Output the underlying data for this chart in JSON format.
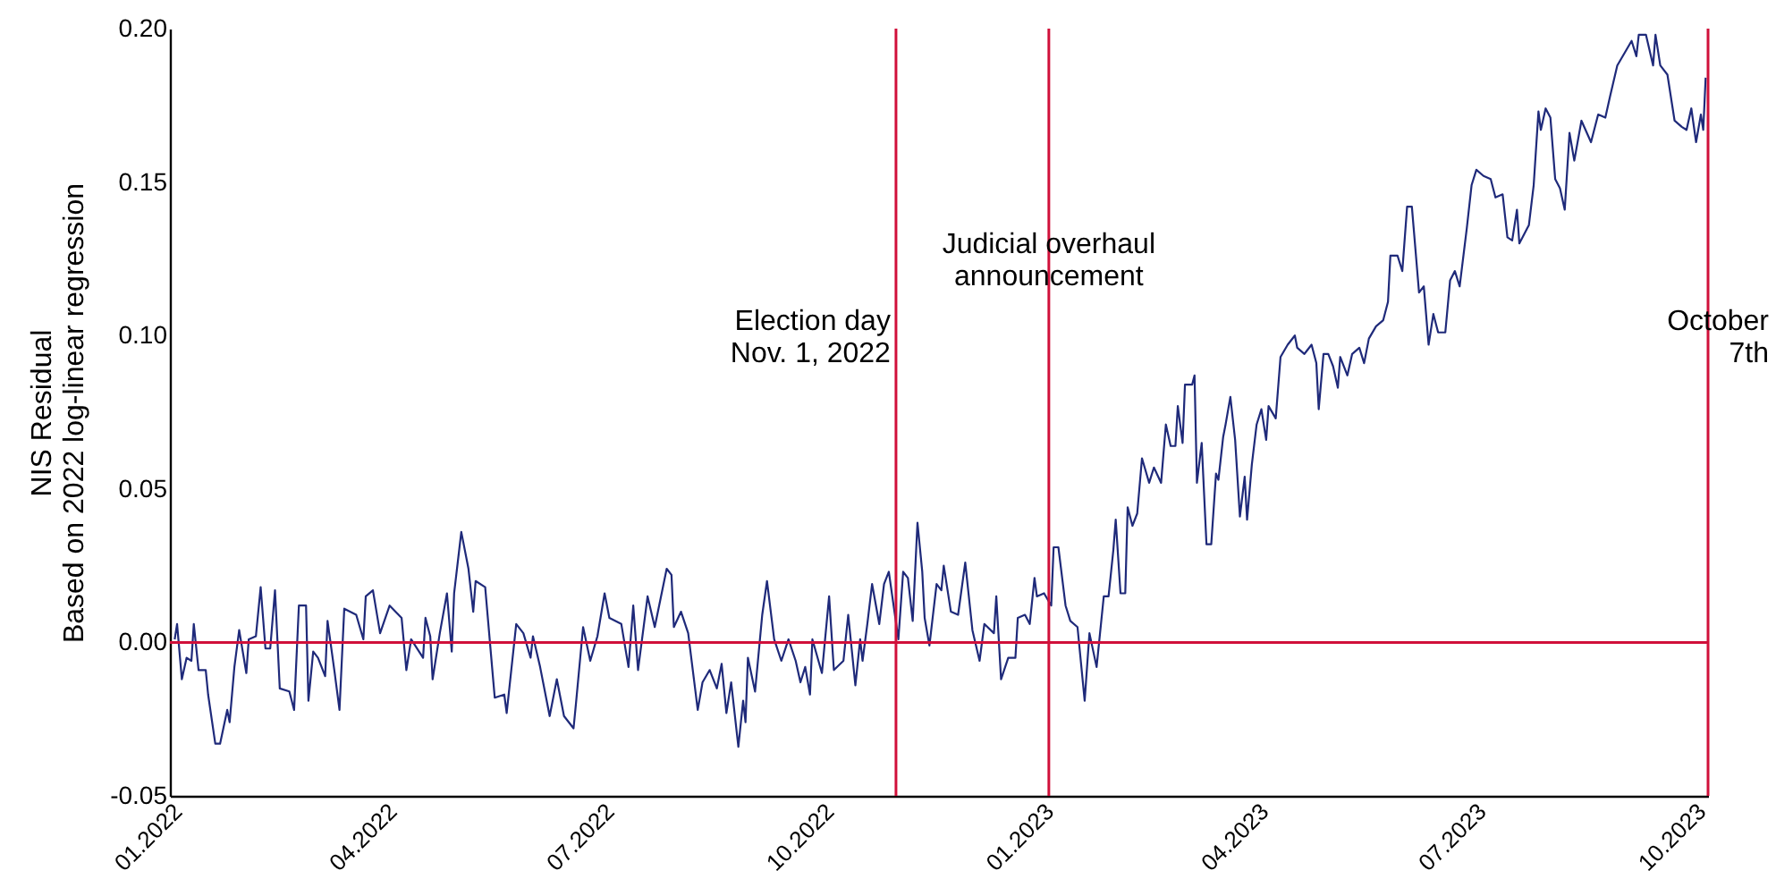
{
  "chart_data": {
    "type": "line",
    "ylabel": "NIS Residual\nBased on 2022 log-linear regression",
    "xlim": [
      "2022-01-01",
      "2023-10-07"
    ],
    "xticks": [
      {
        "value": "2022-01-01",
        "label": "01.2022"
      },
      {
        "value": "2022-04-01",
        "label": "04.2022"
      },
      {
        "value": "2022-07-01",
        "label": "07.2022"
      },
      {
        "value": "2022-10-01",
        "label": "10.2022"
      },
      {
        "value": "2023-01-01",
        "label": "01.2023"
      },
      {
        "value": "2023-04-01",
        "label": "04.2023"
      },
      {
        "value": "2023-07-01",
        "label": "07.2023"
      },
      {
        "value": "2023-10-01",
        "label": "10.2023"
      }
    ],
    "ylim": [
      -0.05,
      0.2
    ],
    "yticks": [
      {
        "value": -0.05,
        "label": "-0.05"
      },
      {
        "value": 0,
        "label": "0.00"
      },
      {
        "value": 0.05,
        "label": "0.05"
      },
      {
        "value": 0.1,
        "label": "0.10"
      },
      {
        "value": 0.15,
        "label": "0.15"
      },
      {
        "value": 0.2,
        "label": "0.20"
      }
    ],
    "grid": false,
    "marker": "none",
    "line_style": "solid",
    "ref_lines": [
      {
        "axis": "y",
        "value": 0,
        "color": "#d0103a"
      },
      {
        "axis": "x",
        "value": "2022-11-01",
        "label": "Election day\nNov. 1, 2022",
        "color": "#d0103a"
      },
      {
        "axis": "x",
        "value": "2023-01-04",
        "label": "Judicial overhaul\nannouncement",
        "color": "#d0103a"
      },
      {
        "axis": "x",
        "value": "2023-10-07",
        "label": "October\n7th",
        "color": "#d0103a"
      }
    ],
    "series": [
      {
        "color": "#1f2a7a",
        "x": [
          "2022-01-03",
          "2022-01-04",
          "2022-01-06",
          "2022-01-08",
          "2022-01-10",
          "2022-01-11",
          "2022-01-13",
          "2022-01-16",
          "2022-01-17",
          "2022-01-20",
          "2022-01-22",
          "2022-01-25",
          "2022-01-26",
          "2022-01-28",
          "2022-01-30",
          "2022-02-02",
          "2022-02-03",
          "2022-02-06",
          "2022-02-08",
          "2022-02-10",
          "2022-02-12",
          "2022-02-14",
          "2022-02-16",
          "2022-02-20",
          "2022-02-22",
          "2022-02-24",
          "2022-02-27",
          "2022-02-28",
          "2022-03-02",
          "2022-03-04",
          "2022-03-07",
          "2022-03-08",
          "2022-03-11",
          "2022-03-13",
          "2022-03-15",
          "2022-03-20",
          "2022-03-23",
          "2022-03-24",
          "2022-03-27",
          "2022-03-30",
          "2022-04-03",
          "2022-04-08",
          "2022-04-10",
          "2022-04-12",
          "2022-04-17",
          "2022-04-18",
          "2022-04-20",
          "2022-04-21",
          "2022-04-24",
          "2022-04-27",
          "2022-04-29",
          "2022-04-30",
          "2022-05-03",
          "2022-05-06",
          "2022-05-08",
          "2022-05-09",
          "2022-05-13",
          "2022-05-17",
          "2022-05-21",
          "2022-05-22",
          "2022-05-26",
          "2022-05-29",
          "2022-06-01",
          "2022-06-02",
          "2022-06-05",
          "2022-06-09",
          "2022-06-12",
          "2022-06-15",
          "2022-06-19",
          "2022-06-20",
          "2022-06-23",
          "2022-06-26",
          "2022-06-29",
          "2022-07-02",
          "2022-07-04",
          "2022-07-09",
          "2022-07-12",
          "2022-07-14",
          "2022-07-16",
          "2022-07-20",
          "2022-07-23",
          "2022-07-28",
          "2022-07-30",
          "2022-07-31",
          "2022-08-03",
          "2022-08-06",
          "2022-08-10",
          "2022-08-12",
          "2022-08-15",
          "2022-08-18",
          "2022-08-20",
          "2022-08-22",
          "2022-08-24",
          "2022-08-27",
          "2022-08-29",
          "2022-08-30",
          "2022-08-31",
          "2022-09-03",
          "2022-09-06",
          "2022-09-08",
          "2022-09-11",
          "2022-09-14",
          "2022-09-17",
          "2022-09-20",
          "2022-09-22",
          "2022-09-24",
          "2022-09-26",
          "2022-09-27",
          "2022-10-01",
          "2022-10-04",
          "2022-10-06",
          "2022-10-10",
          "2022-10-12",
          "2022-10-15",
          "2022-10-17",
          "2022-10-18",
          "2022-10-20",
          "2022-10-22",
          "2022-10-25",
          "2022-10-27",
          "2022-10-29",
          "2022-11-02",
          "2022-11-04",
          "2022-11-06",
          "2022-11-08",
          "2022-11-10",
          "2022-11-12",
          "2022-11-13",
          "2022-11-15",
          "2022-11-18",
          "2022-11-20",
          "2022-11-21",
          "2022-11-24",
          "2022-11-27",
          "2022-11-30",
          "2022-12-03",
          "2022-12-06",
          "2022-12-08",
          "2022-12-12",
          "2022-12-13",
          "2022-12-15",
          "2022-12-18",
          "2022-12-21",
          "2022-12-22",
          "2022-12-25",
          "2022-12-27",
          "2022-12-29",
          "2022-12-30",
          "2023-01-02",
          "2023-01-05",
          "2023-01-06",
          "2023-01-08",
          "2023-01-11",
          "2023-01-13",
          "2023-01-16",
          "2023-01-19",
          "2023-01-21",
          "2023-01-24",
          "2023-01-27",
          "2023-01-29",
          "2023-01-31",
          "2023-02-01",
          "2023-02-03",
          "2023-02-05",
          "2023-02-06",
          "2023-02-08",
          "2023-02-10",
          "2023-02-12",
          "2023-02-15",
          "2023-02-17",
          "2023-02-20",
          "2023-02-22",
          "2023-02-24",
          "2023-02-26",
          "2023-02-27",
          "2023-03-01",
          "2023-03-02",
          "2023-03-05",
          "2023-03-06",
          "2023-03-07",
          "2023-03-09",
          "2023-03-11",
          "2023-03-13",
          "2023-03-15",
          "2023-03-16",
          "2023-03-18",
          "2023-03-19",
          "2023-03-21",
          "2023-03-23",
          "2023-03-25",
          "2023-03-27",
          "2023-03-28",
          "2023-03-30",
          "2023-04-01",
          "2023-04-03",
          "2023-04-05",
          "2023-04-06",
          "2023-04-09",
          "2023-04-11",
          "2023-04-14",
          "2023-04-17",
          "2023-04-18",
          "2023-04-21",
          "2023-04-24",
          "2023-04-26",
          "2023-04-27",
          "2023-04-29",
          "2023-05-01",
          "2023-05-03",
          "2023-05-05",
          "2023-05-06",
          "2023-05-09",
          "2023-05-11",
          "2023-05-14",
          "2023-05-16",
          "2023-05-18",
          "2023-05-21",
          "2023-05-24",
          "2023-05-26",
          "2023-05-27",
          "2023-05-30",
          "2023-06-01",
          "2023-06-03",
          "2023-06-05",
          "2023-06-08",
          "2023-06-10",
          "2023-06-12",
          "2023-06-14",
          "2023-06-16",
          "2023-06-19",
          "2023-06-21",
          "2023-06-23",
          "2023-06-25",
          "2023-06-28",
          "2023-06-30",
          "2023-07-02",
          "2023-07-05",
          "2023-07-08",
          "2023-07-10",
          "2023-07-13",
          "2023-07-15",
          "2023-07-17",
          "2023-07-19",
          "2023-07-20",
          "2023-07-24",
          "2023-07-26",
          "2023-07-28",
          "2023-07-29",
          "2023-07-31",
          "2023-08-02",
          "2023-08-04",
          "2023-08-06",
          "2023-08-08",
          "2023-08-10",
          "2023-08-12",
          "2023-08-15",
          "2023-08-19",
          "2023-08-22",
          "2023-08-25",
          "2023-08-27",
          "2023-08-30",
          "2023-09-02",
          "2023-09-05",
          "2023-09-07",
          "2023-09-08",
          "2023-09-11",
          "2023-09-14",
          "2023-09-15",
          "2023-09-17",
          "2023-09-20",
          "2023-09-23",
          "2023-09-26",
          "2023-09-28",
          "2023-09-30",
          "2023-10-02",
          "2023-10-04",
          "2023-10-05",
          "2023-10-06"
        ],
        "values": [
          0.001,
          0.006,
          -0.012,
          -0.005,
          -0.006,
          0.006,
          -0.009,
          -0.009,
          -0.017,
          -0.033,
          -0.033,
          -0.022,
          -0.026,
          -0.008,
          0.004,
          -0.01,
          0.001,
          0.002,
          0.018,
          -0.002,
          -0.002,
          0.017,
          -0.015,
          -0.016,
          -0.022,
          0.012,
          0.012,
          -0.019,
          -0.003,
          -0.005,
          -0.011,
          0.007,
          -0.01,
          -0.022,
          0.011,
          0.009,
          0.001,
          0.015,
          0.017,
          0.003,
          0.012,
          0.008,
          -0.009,
          0.001,
          -0.005,
          0.008,
          0.002,
          -0.012,
          0.003,
          0.016,
          -0.003,
          0.016,
          0.036,
          0.024,
          0.01,
          0.02,
          0.018,
          -0.018,
          -0.017,
          -0.023,
          0.006,
          0.003,
          -0.005,
          0.002,
          -0.008,
          -0.024,
          -0.012,
          -0.024,
          -0.028,
          -0.02,
          0.005,
          -0.006,
          0.002,
          0.016,
          0.008,
          0.006,
          -0.008,
          0.012,
          -0.009,
          0.015,
          0.005,
          0.024,
          0.022,
          0.005,
          0.01,
          0.003,
          -0.022,
          -0.013,
          -0.009,
          -0.015,
          -0.007,
          -0.023,
          -0.013,
          -0.034,
          -0.019,
          -0.026,
          -0.005,
          -0.016,
          0.009,
          0.02,
          0.001,
          -0.006,
          0.001,
          -0.006,
          -0.013,
          -0.008,
          -0.017,
          0.001,
          -0.01,
          0.015,
          -0.009,
          -0.006,
          0.009,
          -0.014,
          0.001,
          -0.006,
          0.006,
          0.019,
          0.006,
          0.019,
          0.023,
          0.001,
          0.023,
          0.021,
          0.007,
          0.039,
          0.023,
          0.008,
          -0.001,
          0.019,
          0.017,
          0.025,
          0.01,
          0.009,
          0.026,
          0.004,
          -0.006,
          0.006,
          0.003,
          0.015,
          -0.012,
          -0.005,
          -0.005,
          0.008,
          0.009,
          0.006,
          0.021,
          0.015,
          0.016,
          0.012,
          0.031,
          0.031,
          0.012,
          0.007,
          0.005,
          -0.019,
          0.003,
          -0.008,
          0.015,
          0.015,
          0.03,
          0.04,
          0.016,
          0.016,
          0.044,
          0.038,
          0.042,
          0.06,
          0.052,
          0.057,
          0.052,
          0.071,
          0.064,
          0.064,
          0.077,
          0.065,
          0.084,
          0.084,
          0.087,
          0.052,
          0.065,
          0.032,
          0.032,
          0.055,
          0.053,
          0.067,
          0.071,
          0.08,
          0.066,
          0.041,
          0.054,
          0.04,
          0.058,
          0.071,
          0.076,
          0.066,
          0.077,
          0.073,
          0.093,
          0.097,
          0.1,
          0.096,
          0.094,
          0.097,
          0.091,
          0.076,
          0.094,
          0.094,
          0.09,
          0.083,
          0.093,
          0.087,
          0.094,
          0.096,
          0.091,
          0.099,
          0.103,
          0.105,
          0.111,
          0.126,
          0.126,
          0.121,
          0.142,
          0.142,
          0.114,
          0.116,
          0.097,
          0.107,
          0.101,
          0.101,
          0.118,
          0.121,
          0.116,
          0.135,
          0.149,
          0.154,
          0.152,
          0.151,
          0.145,
          0.146,
          0.132,
          0.131,
          0.141,
          0.13,
          0.136,
          0.149,
          0.173,
          0.167,
          0.174,
          0.171,
          0.151,
          0.148,
          0.141,
          0.166,
          0.157,
          0.17,
          0.163,
          0.172,
          0.171,
          0.178,
          0.188,
          0.192,
          0.196,
          0.191,
          0.198,
          0.198,
          0.188,
          0.198,
          0.188,
          0.185,
          0.17,
          0.168,
          0.167,
          0.174,
          0.163,
          0.172,
          0.167,
          0.184
        ]
      }
    ]
  }
}
